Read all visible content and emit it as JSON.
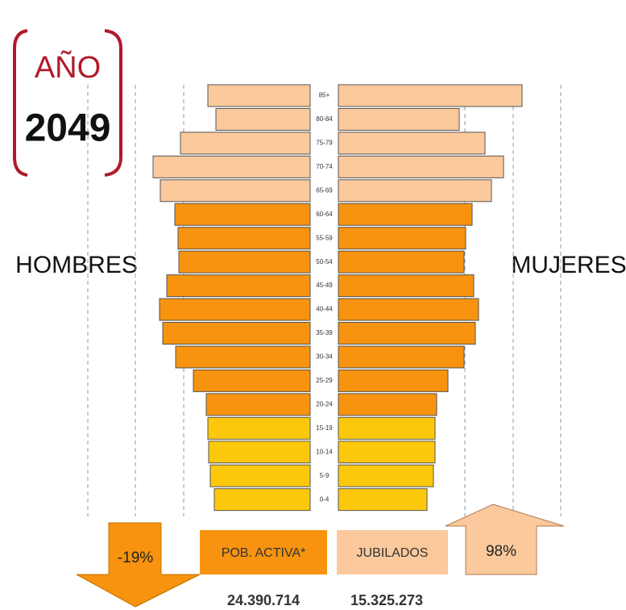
{
  "chart_data": {
    "type": "pyramid",
    "title": "AÑO",
    "subtitle": "2049",
    "categories": [
      "85+",
      "80-84",
      "75-79",
      "70-74",
      "65-69",
      "60-64",
      "55-59",
      "50-54",
      "45-49",
      "40-44",
      "35-39",
      "30-34",
      "25-29",
      "20-24",
      "15-19",
      "10-14",
      "5-9",
      "0-4"
    ],
    "colors": [
      "#fbc99c",
      "#fbc99c",
      "#fbc99c",
      "#fbc99c",
      "#fbc99c",
      "#f7930e",
      "#f7930e",
      "#f7930e",
      "#f7930e",
      "#f7930e",
      "#f7930e",
      "#f7930e",
      "#f7930e",
      "#f7930e",
      "#fcc80c",
      "#fcc80c",
      "#fcc80c",
      "#fcc80c"
    ],
    "series": [
      {
        "name": "HOMBRES",
        "values": [
          127,
          117,
          161,
          195,
          186,
          168,
          164,
          163,
          178,
          187,
          183,
          167,
          145,
          129,
          127,
          126,
          124,
          119
        ]
      },
      {
        "name": "MUJERES",
        "values": [
          228,
          150,
          182,
          205,
          190,
          166,
          158,
          156,
          168,
          174,
          170,
          156,
          136,
          122,
          120,
          120,
          118,
          110
        ]
      }
    ],
    "xlim": [
      0,
      280
    ],
    "xticks": [
      157,
      217,
      276
    ],
    "grid": true,
    "legend": [
      {
        "label": "POB. ACTIVA*",
        "color": "#f7930e",
        "total": {
          "value": 24390714,
          "label": "24.390.714"
        }
      },
      {
        "label": "JUBILADOS",
        "color": "#fbc99c",
        "total": {
          "value": 15325273,
          "label": "15.325.273"
        }
      }
    ],
    "changes": [
      {
        "value": -19,
        "label": "-19%",
        "color": "#f7930e"
      },
      {
        "value": 98,
        "label": "98%",
        "color": "#fbc99c"
      }
    ]
  }
}
